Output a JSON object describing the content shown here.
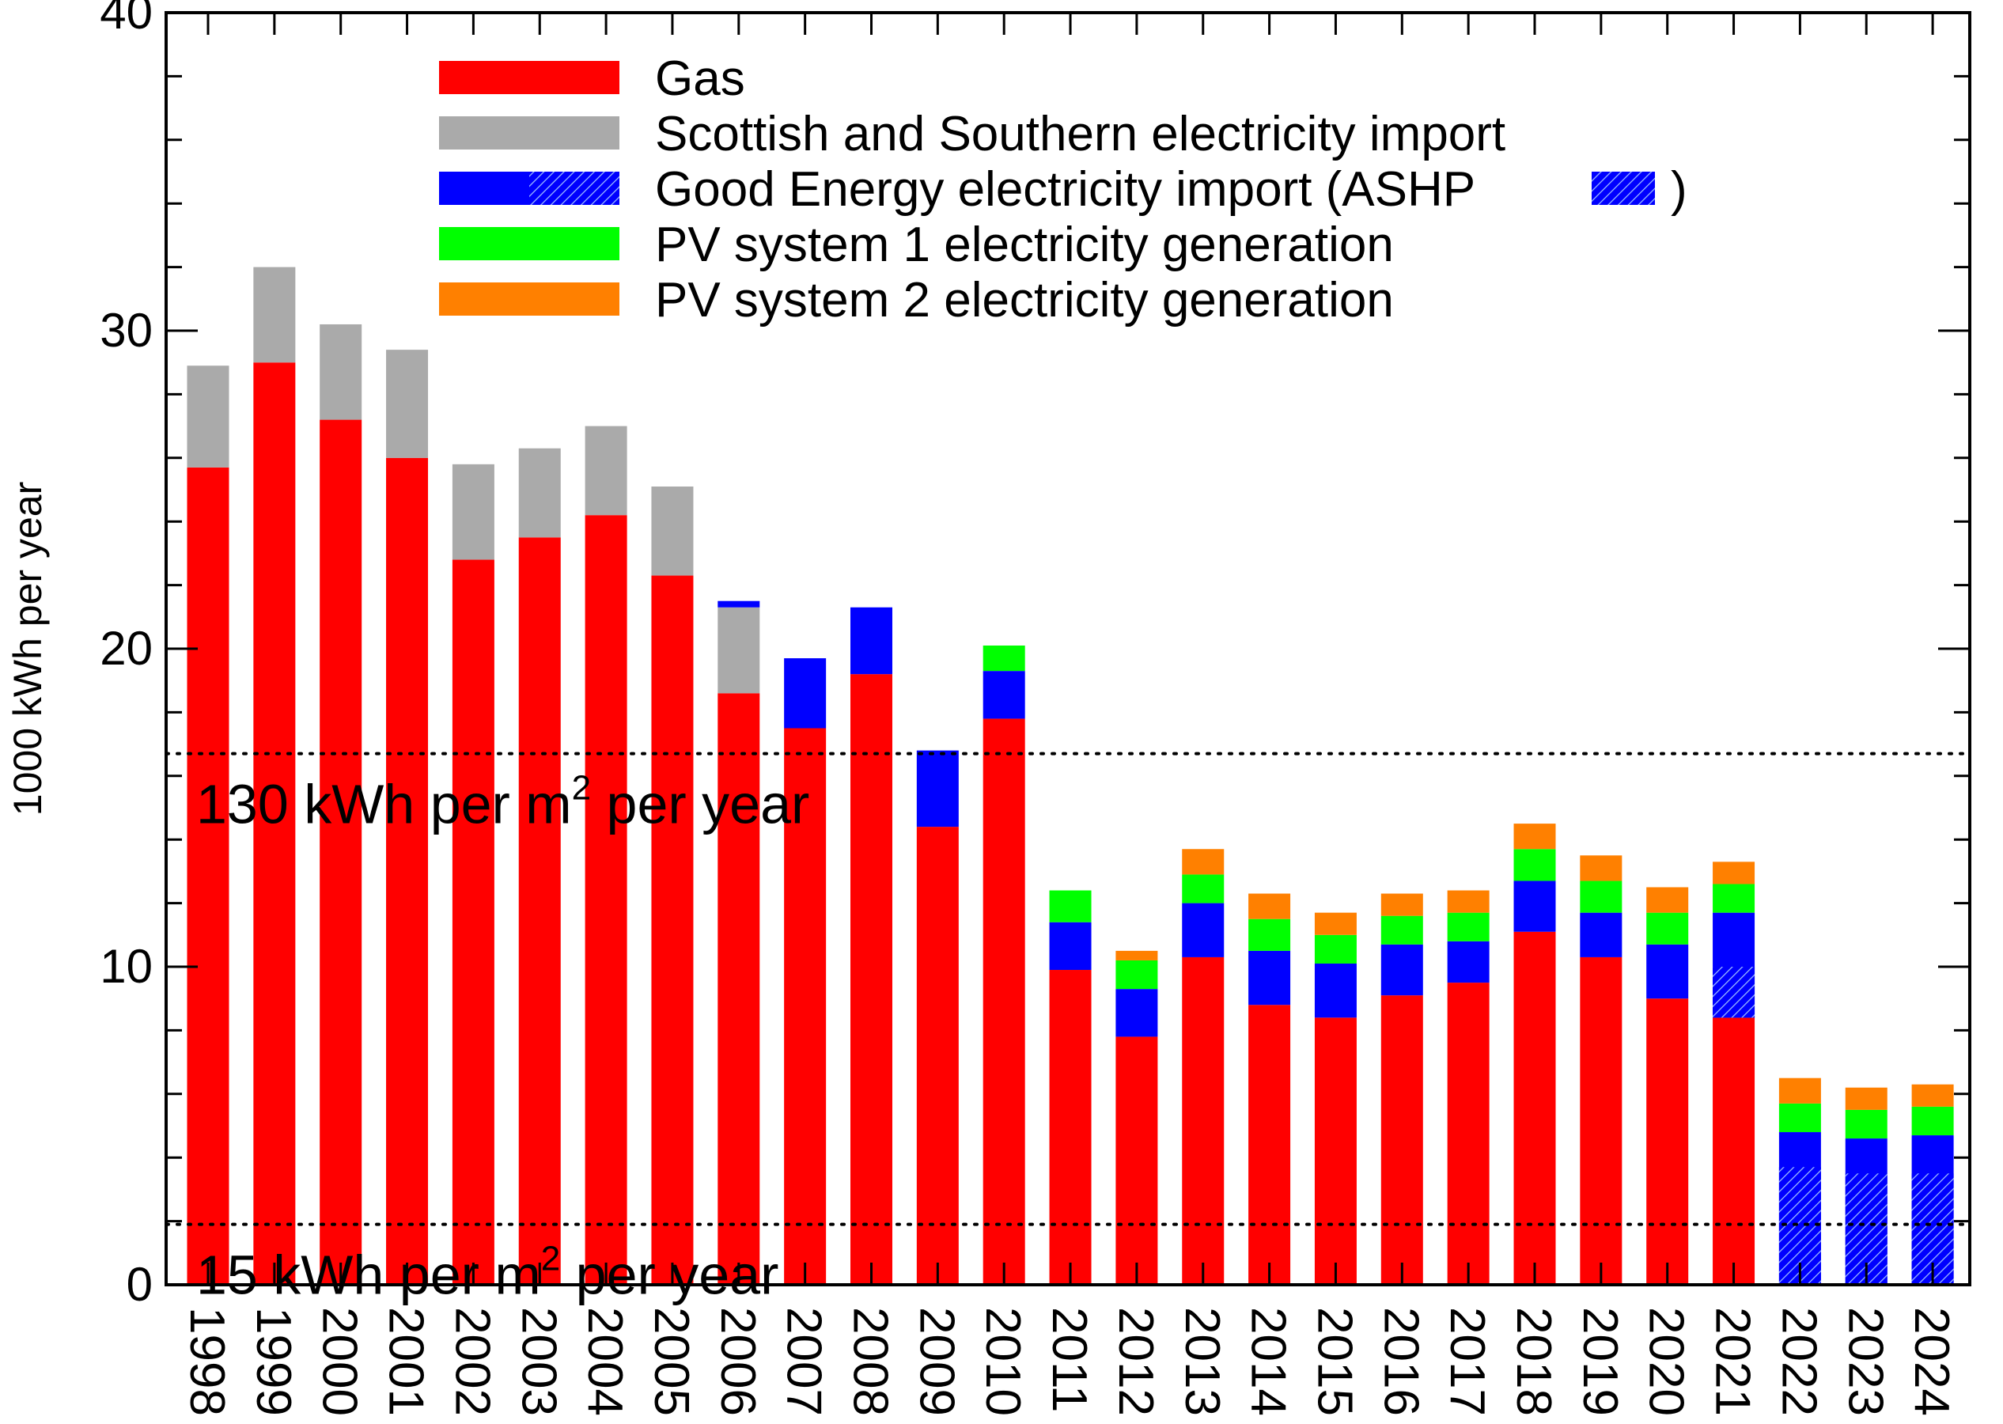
{
  "chart_data": {
    "type": "bar",
    "stacked": true,
    "title": "",
    "ylabel": "1000 kWh per year",
    "xlabel": "",
    "ylim": [
      0,
      40
    ],
    "yticks": [
      0,
      10,
      20,
      30,
      40
    ],
    "grid": false,
    "legend_position": "top-center",
    "categories": [
      "1998",
      "1999",
      "2000",
      "2001",
      "2002",
      "2003",
      "2004",
      "2005",
      "2006",
      "2007",
      "2008",
      "2009",
      "2010",
      "2011",
      "2012",
      "2013",
      "2014",
      "2015",
      "2016",
      "2017",
      "2018",
      "2019",
      "2020",
      "2021",
      "2022",
      "2023",
      "2024"
    ],
    "series": [
      {
        "name": "Gas",
        "color": "#ff0000",
        "values": [
          25.7,
          29.0,
          27.2,
          26.0,
          22.8,
          23.5,
          24.2,
          22.3,
          18.6,
          17.5,
          19.2,
          14.4,
          17.8,
          9.9,
          7.8,
          10.3,
          8.8,
          8.4,
          9.1,
          9.5,
          11.1,
          10.3,
          9.0,
          8.4,
          0,
          0,
          0
        ]
      },
      {
        "name": "Scottish and Southern electricity import",
        "color": "#aaaaaa",
        "values": [
          3.2,
          3.0,
          3.0,
          3.4,
          3.0,
          2.8,
          2.8,
          2.8,
          2.7,
          0,
          0,
          0,
          0,
          0,
          0,
          0,
          0,
          0,
          0,
          0,
          0,
          0,
          0,
          0,
          0,
          0,
          0
        ]
      },
      {
        "name": "Good Energy electricity import",
        "color": "#0000ff",
        "values": [
          0,
          0,
          0,
          0,
          0,
          0,
          0,
          0,
          0.2,
          2.2,
          2.1,
          2.4,
          1.5,
          1.5,
          1.5,
          1.7,
          1.7,
          1.7,
          1.6,
          1.3,
          1.6,
          1.4,
          1.7,
          3.3,
          4.8,
          4.6,
          4.7
        ],
        "ashp_portion": [
          0,
          0,
          0,
          0,
          0,
          0,
          0,
          0,
          0,
          0,
          0,
          0,
          0,
          0,
          0,
          0,
          0,
          0,
          0,
          0,
          0,
          0,
          0,
          1.6,
          3.7,
          3.5,
          3.5
        ]
      },
      {
        "name": "PV system 1 electricity generation",
        "color": "#00ff00",
        "values": [
          0,
          0,
          0,
          0,
          0,
          0,
          0,
          0,
          0,
          0,
          0,
          0,
          0.8,
          1.0,
          0.9,
          0.9,
          1.0,
          0.9,
          0.9,
          0.9,
          1.0,
          1.0,
          1.0,
          0.9,
          0.9,
          0.9,
          0.9
        ]
      },
      {
        "name": "PV system 2 electricity generation",
        "color": "#ff8000",
        "values": [
          0,
          0,
          0,
          0,
          0,
          0,
          0,
          0,
          0,
          0,
          0,
          0,
          0,
          0,
          0.3,
          0.8,
          0.8,
          0.7,
          0.7,
          0.7,
          0.8,
          0.8,
          0.8,
          0.7,
          0.8,
          0.7,
          0.7
        ]
      }
    ],
    "annotations": [
      {
        "value": 16.7,
        "label_prefix": "130 kWh per m",
        "label_sup": "2",
        "label_suffix": " per year",
        "style": "dotted"
      },
      {
        "value": 1.9,
        "label_prefix": "15 kWh per m",
        "label_sup": "2",
        "label_suffix": " per year",
        "style": "dotted"
      }
    ],
    "legend": {
      "entries": [
        {
          "label": "Gas",
          "swatch": "solid",
          "color": "#ff0000"
        },
        {
          "label": "Scottish and Southern electricity import",
          "swatch": "solid",
          "color": "#aaaaaa"
        },
        {
          "label": "Good Energy electricity import (ASHP",
          "label_end": ")",
          "swatch": "split-hatch",
          "color": "#0000ff"
        },
        {
          "label": "PV system 1 electricity generation",
          "swatch": "solid",
          "color": "#00ff00"
        },
        {
          "label": "PV system 2 electricity generation",
          "swatch": "solid",
          "color": "#ff8000"
        }
      ]
    }
  }
}
